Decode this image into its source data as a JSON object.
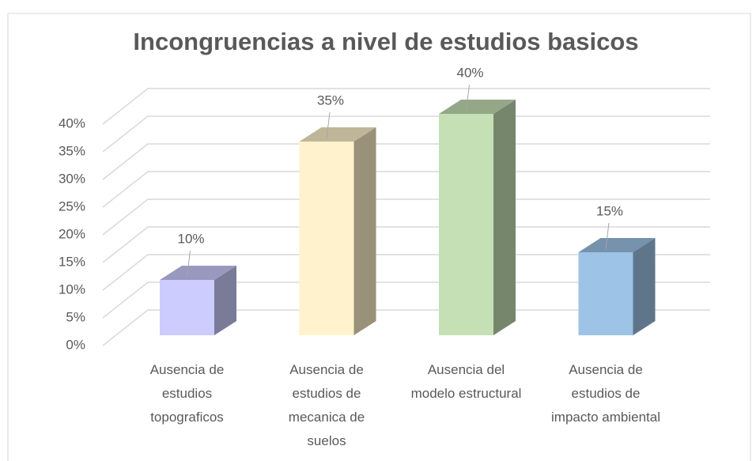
{
  "chart_data": {
    "type": "bar3d",
    "title": "Incongruencias a nivel de estudios basicos",
    "categories": [
      "Ausencia de estudios topograficos",
      "Ausencia de estudios de mecanica de suelos",
      "Ausencia del modelo estructural",
      "Ausencia de estudios de impacto ambiental"
    ],
    "values": [
      10,
      35,
      40,
      15
    ],
    "value_labels": [
      "10%",
      "35%",
      "40%",
      "15%"
    ],
    "colors": [
      "#ccccff",
      "#fff2cc",
      "#c5e0b4",
      "#9dc3e6"
    ],
    "ylim": [
      0,
      40
    ],
    "yticks": [
      {
        "value": 0,
        "label": "0%"
      },
      {
        "value": 5,
        "label": "5%"
      },
      {
        "value": 10,
        "label": "10%"
      },
      {
        "value": 15,
        "label": "15%"
      },
      {
        "value": 20,
        "label": "20%"
      },
      {
        "value": 25,
        "label": "25%"
      },
      {
        "value": 30,
        "label": "30%"
      },
      {
        "value": 35,
        "label": "35%"
      },
      {
        "value": 40,
        "label": "40%"
      }
    ],
    "grid": true
  }
}
